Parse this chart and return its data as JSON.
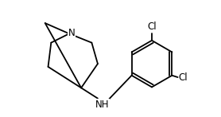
{
  "bg_color": "#ffffff",
  "line_color": "#000000",
  "text_color": "#000000",
  "label_N": "N",
  "label_NH": "NH",
  "label_Cl1": "Cl",
  "label_Cl2": "Cl",
  "figsize": [
    2.78,
    1.47
  ],
  "dpi": 100
}
